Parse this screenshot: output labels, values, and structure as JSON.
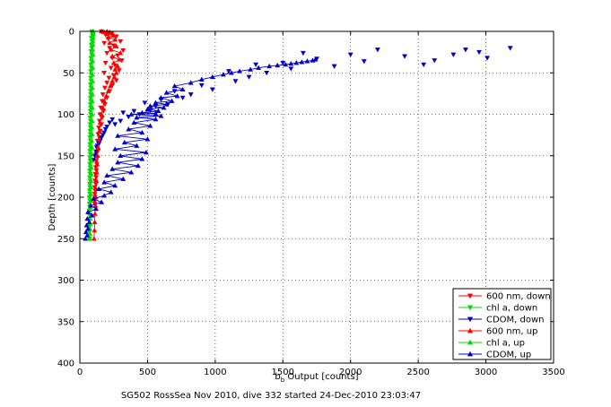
{
  "chart_data": {
    "type": "line",
    "caption": "SG502 RossSea Nov 2010, dive 332 started 24-Dec-2010 23:03:47",
    "xlabel_main": "b",
    "xlabel_sub": "b",
    "xlabel_rest": " Output [counts]",
    "ylabel": "Depth [counts]",
    "xlim": [
      0,
      3500
    ],
    "ylim": [
      0,
      400
    ],
    "y_reversed": true,
    "grid": true,
    "legend_position": "bottom-right",
    "xticks": [
      "0",
      "500",
      "1000",
      "1500",
      "2000",
      "2500",
      "3000",
      "3500"
    ],
    "yticks": [
      "0",
      "50",
      "100",
      "150",
      "200",
      "250",
      "300",
      "350",
      "400"
    ],
    "series": [
      {
        "name": "600 nm, down",
        "color": "#ff0000",
        "marker": "triangle-down",
        "line": false,
        "x": [
          160,
          230,
          190,
          270,
          210,
          300,
          180,
          250,
          220,
          320,
          200,
          280,
          240,
          310,
          190,
          260,
          230,
          290,
          180,
          250,
          215,
          270,
          200,
          240,
          185,
          220,
          170,
          200,
          165,
          185,
          155,
          175,
          150,
          165,
          145,
          160,
          140,
          150,
          135,
          145,
          130,
          140,
          125,
          135,
          120,
          130,
          120,
          125,
          118,
          122,
          115,
          120,
          112,
          118,
          110,
          115,
          110,
          112,
          108,
          110
        ],
        "y": [
          0,
          2,
          4,
          6,
          9,
          12,
          14,
          17,
          20,
          23,
          26,
          29,
          32,
          35,
          38,
          41,
          44,
          47,
          50,
          53,
          56,
          59,
          62,
          65,
          68,
          72,
          76,
          80,
          84,
          88,
          92,
          96,
          100,
          104,
          108,
          112,
          116,
          120,
          124,
          128,
          132,
          136,
          140,
          144,
          148,
          152,
          156,
          160,
          164,
          168,
          172,
          176,
          180,
          184,
          188,
          192,
          196,
          200,
          204,
          208
        ]
      },
      {
        "name": "chl a, down",
        "color": "#00dd00",
        "marker": "triangle-down",
        "line": false,
        "x": [
          88,
          92,
          86,
          90,
          84,
          88,
          83,
          87,
          82,
          86,
          81,
          85,
          80,
          84,
          80,
          83,
          79,
          82,
          79,
          81,
          78,
          81,
          78,
          80,
          77,
          80,
          77,
          79,
          76,
          79,
          76,
          78,
          75,
          78,
          75,
          77,
          74,
          77,
          74,
          76,
          73,
          76,
          73,
          75,
          72,
          75,
          72,
          74,
          71,
          74,
          71,
          73,
          70,
          73,
          70,
          72,
          70,
          72,
          69,
          71
        ],
        "y": [
          0,
          4,
          8,
          12,
          16,
          20,
          24,
          28,
          32,
          36,
          40,
          44,
          48,
          52,
          56,
          60,
          64,
          68,
          72,
          76,
          80,
          84,
          88,
          92,
          96,
          100,
          104,
          108,
          112,
          116,
          120,
          124,
          128,
          132,
          136,
          140,
          144,
          148,
          152,
          156,
          160,
          164,
          168,
          172,
          176,
          180,
          184,
          188,
          192,
          196,
          200,
          204,
          208,
          212,
          216,
          222,
          228,
          235,
          242,
          250
        ]
      },
      {
        "name": "CDOM, down",
        "color": "#0000cc",
        "marker": "triangle-down",
        "line": false,
        "x": [
          3180,
          2950,
          3010,
          2850,
          2760,
          2620,
          2540,
          2400,
          2200,
          2100,
          2000,
          1880,
          1750,
          1650,
          1560,
          1500,
          1380,
          1300,
          1250,
          1150,
          1100,
          980,
          900,
          820,
          760,
          700,
          650,
          600,
          560,
          520,
          480,
          440,
          400,
          360,
          320,
          300,
          260,
          240,
          220,
          200,
          190,
          180,
          170,
          160,
          150,
          140,
          130,
          125,
          120,
          110,
          100
        ],
        "y": [
          20,
          25,
          32,
          22,
          28,
          35,
          40,
          30,
          22,
          36,
          28,
          42,
          33,
          26,
          45,
          38,
          50,
          40,
          55,
          60,
          48,
          70,
          65,
          76,
          80,
          72,
          88,
          82,
          90,
          95,
          86,
          100,
          96,
          103,
          98,
          108,
          112,
          106,
          110,
          115,
          118,
          122,
          125,
          128,
          132,
          135,
          138,
          140,
          145,
          150,
          155
        ]
      },
      {
        "name": "600 nm, up",
        "color": "#ff0000",
        "marker": "triangle-up",
        "line": true,
        "x": [
          105,
          108,
          110,
          112,
          115,
          118,
          120,
          122,
          125,
          128,
          130,
          135,
          140,
          145,
          150,
          160,
          170,
          180,
          195,
          210,
          225,
          240,
          255,
          270,
          260,
          280,
          250,
          290,
          240,
          300,
          230,
          270,
          220,
          260,
          210,
          250,
          200,
          240,
          180,
          220,
          160,
          200
        ],
        "y": [
          250,
          240,
          230,
          220,
          210,
          200,
          190,
          180,
          170,
          160,
          150,
          140,
          130,
          120,
          110,
          100,
          92,
          84,
          78,
          72,
          66,
          60,
          55,
          50,
          46,
          42,
          38,
          34,
          30,
          26,
          22,
          18,
          14,
          10,
          7,
          5,
          3,
          2,
          1,
          1,
          0,
          0
        ]
      },
      {
        "name": "chl a, up",
        "color": "#00dd00",
        "marker": "triangle-up",
        "line": true,
        "x": [
          72,
          75,
          74,
          77,
          76,
          79,
          78,
          81,
          80,
          83,
          82,
          85,
          84,
          87,
          86,
          89,
          88,
          90,
          89,
          91,
          90,
          92,
          91,
          93,
          92,
          94,
          93,
          95,
          94,
          96,
          95,
          96,
          95,
          97,
          96,
          97,
          96,
          98,
          97,
          98
        ],
        "y": [
          250,
          244,
          238,
          232,
          226,
          220,
          212,
          204,
          196,
          188,
          180,
          172,
          164,
          156,
          148,
          140,
          132,
          124,
          116,
          108,
          100,
          92,
          84,
          76,
          68,
          60,
          52,
          44,
          36,
          28,
          22,
          16,
          12,
          8,
          5,
          3,
          2,
          1,
          1,
          0
        ]
      },
      {
        "name": "CDOM, up",
        "color": "#0000cc",
        "marker": "triangle-up",
        "line": true,
        "x": [
          40,
          55,
          45,
          60,
          50,
          70,
          55,
          90,
          60,
          120,
          80,
          160,
          100,
          180,
          230,
          140,
          260,
          180,
          320,
          200,
          380,
          240,
          430,
          280,
          460,
          300,
          490,
          260,
          420,
          330,
          500,
          280,
          460,
          360,
          520,
          400,
          560,
          420,
          600,
          380,
          560,
          460,
          580,
          500,
          620,
          520,
          640,
          560,
          680,
          600,
          720,
          640,
          760,
          700,
          820,
          900,
          980,
          1060,
          1120,
          1180,
          1260,
          1320,
          1400,
          1460,
          1520,
          1560,
          1600,
          1640,
          1680,
          1720,
          1740
        ],
        "y": [
          250,
          246,
          242,
          238,
          234,
          230,
          226,
          222,
          218,
          214,
          210,
          206,
          202,
          198,
          194,
          190,
          186,
          182,
          178,
          174,
          170,
          166,
          162,
          158,
          154,
          150,
          146,
          142,
          138,
          134,
          130,
          126,
          122,
          118,
          114,
          110,
          106,
          104,
          102,
          100,
          99,
          98,
          96,
          94,
          92,
          90,
          88,
          86,
          84,
          80,
          78,
          74,
          70,
          66,
          62,
          58,
          55,
          52,
          50,
          48,
          46,
          44,
          42,
          41,
          40,
          39,
          38,
          37,
          36,
          35,
          34
        ]
      }
    ]
  }
}
